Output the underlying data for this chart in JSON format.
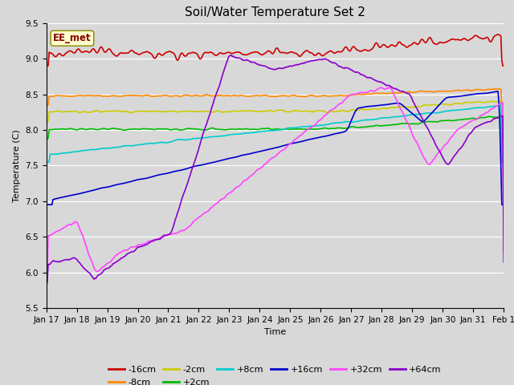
{
  "title": "Soil/Water Temperature Set 2",
  "xlabel": "Time",
  "ylabel": "Temperature (C)",
  "ylim": [
    5.5,
    9.5
  ],
  "bg_color": "#d8d8d8",
  "series": {
    "-16cm": {
      "color": "#cc0000",
      "lw": 1.2
    },
    "-8cm": {
      "color": "#ff8800",
      "lw": 1.2
    },
    "-2cm": {
      "color": "#cccc00",
      "lw": 1.2
    },
    "+2cm": {
      "color": "#00bb00",
      "lw": 1.2
    },
    "+8cm": {
      "color": "#00cccc",
      "lw": 1.2
    },
    "+16cm": {
      "color": "#0000cc",
      "lw": 1.2
    },
    "+32cm": {
      "color": "#ff44ff",
      "lw": 1.2
    },
    "+64cm": {
      "color": "#8800cc",
      "lw": 1.2
    }
  },
  "legend_label": "EE_met",
  "title_fontsize": 11,
  "axis_fontsize": 8,
  "tick_fontsize": 7.5
}
